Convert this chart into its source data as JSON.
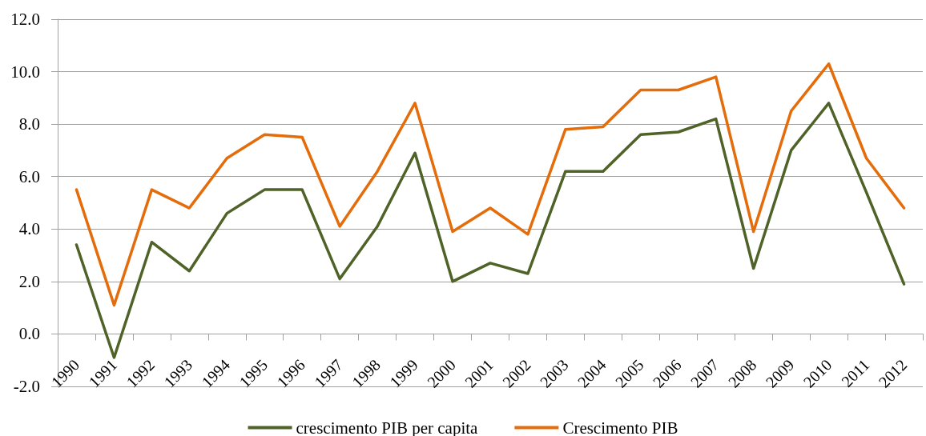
{
  "chart_data": {
    "type": "line",
    "categories": [
      "1990",
      "1991",
      "1992",
      "1993",
      "1994",
      "1995",
      "1996",
      "1997",
      "1998",
      "1999",
      "2000",
      "2001",
      "2002",
      "2003",
      "2004",
      "2005",
      "2006",
      "2007",
      "2008",
      "2009",
      "2010",
      "2011",
      "2012"
    ],
    "series": [
      {
        "name": "crescimento PIB per capita",
        "color": "#4f6228",
        "values": [
          3.4,
          -0.9,
          3.5,
          2.4,
          4.6,
          5.5,
          5.5,
          2.1,
          4.1,
          6.9,
          2.0,
          2.7,
          2.3,
          6.2,
          6.2,
          7.6,
          7.7,
          8.2,
          2.5,
          7.0,
          8.8,
          5.4,
          1.9
        ]
      },
      {
        "name": "Crescimento PIB",
        "color": "#e46c0a",
        "values": [
          5.5,
          1.1,
          5.5,
          4.8,
          6.7,
          7.6,
          7.5,
          4.1,
          6.2,
          8.8,
          3.9,
          4.8,
          3.8,
          7.8,
          7.9,
          9.3,
          9.3,
          9.8,
          3.9,
          8.5,
          10.3,
          6.7,
          4.8
        ]
      }
    ],
    "ylim": [
      -2,
      12
    ],
    "yticks": [
      {
        "value": -2,
        "label": "-2.0"
      },
      {
        "value": 0,
        "label": "0.0"
      },
      {
        "value": 2,
        "label": "2.0"
      },
      {
        "value": 4,
        "label": "4.0"
      },
      {
        "value": 6,
        "label": "6.0"
      },
      {
        "value": 8,
        "label": "8.0"
      },
      {
        "value": 10,
        "label": "10.0"
      },
      {
        "value": 12,
        "label": "12.0"
      }
    ],
    "grid": "y",
    "legend": "bottom",
    "marker": "none",
    "line_style": "solid"
  }
}
